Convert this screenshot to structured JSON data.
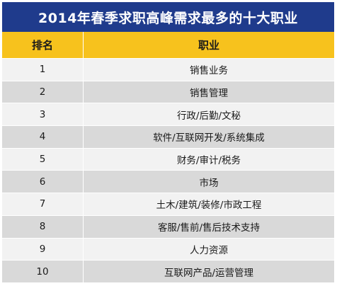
{
  "title": "2014年春季求职高峰需求最多的十大职业",
  "header": {
    "rank": "排名",
    "job": "职业"
  },
  "rows": [
    {
      "rank": "1",
      "job": "销售业务"
    },
    {
      "rank": "2",
      "job": "销售管理"
    },
    {
      "rank": "3",
      "job": "行政/后勤/文秘"
    },
    {
      "rank": "4",
      "job": "软件/互联网开发/系统集成"
    },
    {
      "rank": "5",
      "job": "财务/审计/税务"
    },
    {
      "rank": "6",
      "job": "市场"
    },
    {
      "rank": "7",
      "job": "土木/建筑/装修/市政工程"
    },
    {
      "rank": "8",
      "job": "客服/售前/售后技术支持"
    },
    {
      "rank": "9",
      "job": "人力资源"
    },
    {
      "rank": "10",
      "job": "互联网产品/运营管理"
    }
  ],
  "colors": {
    "title_bg": "#1f3b8c",
    "header_bg": "#f7c21d",
    "row_light": "#f2f2f2",
    "row_dark": "#d9d9d9"
  }
}
